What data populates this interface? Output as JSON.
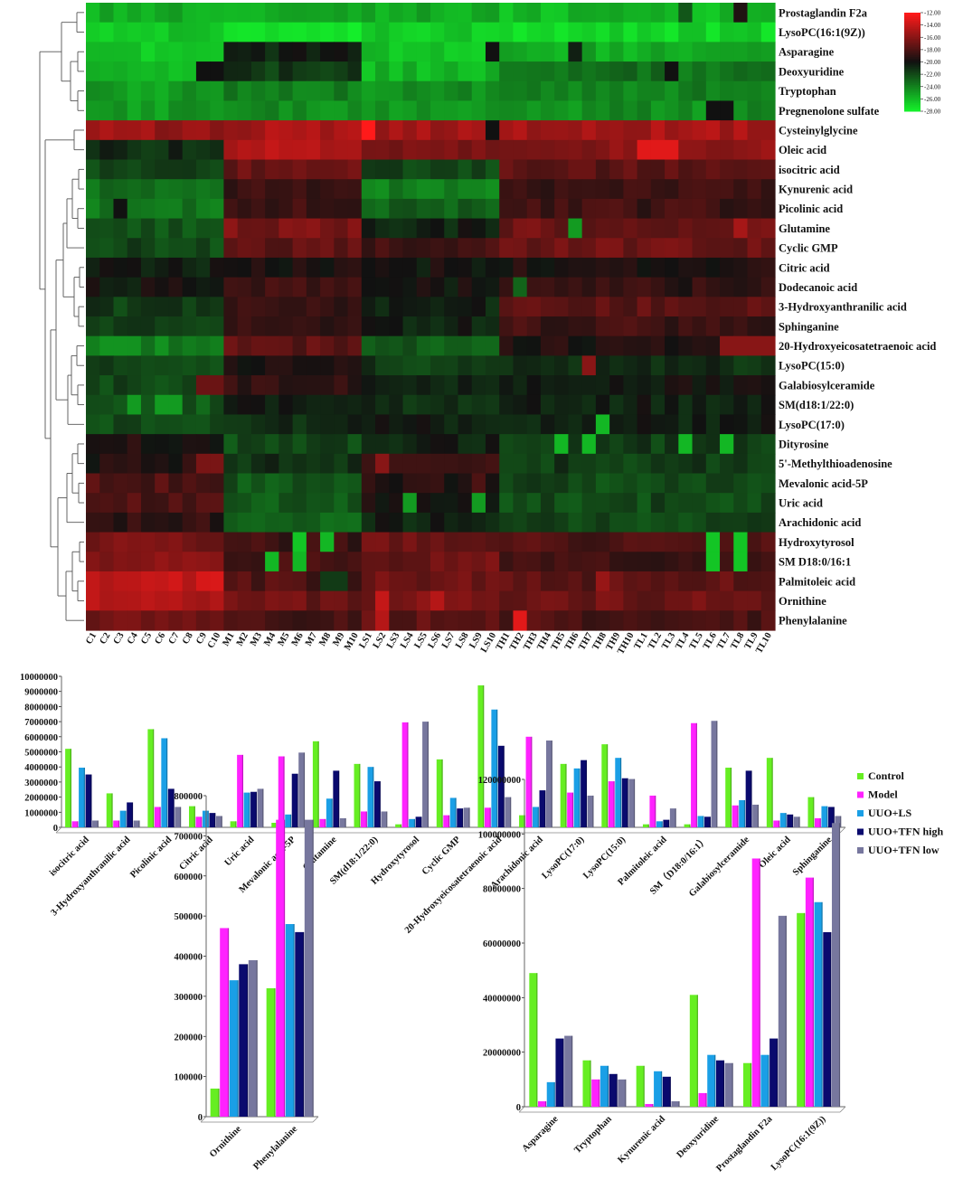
{
  "colors": {
    "hm_high": "#ff1a1a",
    "hm_mid": "#111111",
    "hm_low": "#14ee2a",
    "Control": "#66ee22",
    "Model": "#ff22ff",
    "UUO+LS": "#1a9fe6",
    "UUO+TFN high": "#0a0a6e",
    "UUO+TFN low": "#77779e"
  },
  "chart_data": [
    {
      "type": "heatmap",
      "title": "",
      "columns": [
        "C1",
        "C2",
        "C3",
        "C4",
        "C5",
        "C6",
        "C7",
        "C8",
        "C9",
        "C10",
        "M1",
        "M2",
        "M3",
        "M4",
        "M5",
        "M6",
        "M7",
        "M8",
        "M9",
        "M10",
        "LS1",
        "LS2",
        "LS3",
        "LS4",
        "LS5",
        "LS6",
        "LS7",
        "LS8",
        "LS9",
        "LS10",
        "TH1",
        "TH2",
        "TH3",
        "TH4",
        "TH5",
        "TH6",
        "TH7",
        "TH8",
        "TH9",
        "TH10",
        "TL1",
        "TL2",
        "TL3",
        "TL4",
        "TL5",
        "TL6",
        "TL7",
        "TL8",
        "TL9",
        "TL10"
      ],
      "rows": [
        {
          "name": "Prostaglandin F2a",
          "base": [
            -25.5,
            -25.5,
            -25.5,
            -26.0
          ],
          "spots": {
            "47": -19.5,
            "43": -22.5
          }
        },
        {
          "name": "LysoPC(16:1(9Z))",
          "base": [
            -26.5,
            -27.5,
            -26.5,
            -27.0
          ],
          "spots": {}
        },
        {
          "name": "Asparagine",
          "base": [
            -26.5,
            -20.5,
            -26.5,
            -25.5
          ],
          "spots": {
            "29": -20.0,
            "35": -20.5
          }
        },
        {
          "name": "Deoxyuridine",
          "base": [
            -26.0,
            -21.5,
            -26.0,
            -23.5
          ],
          "spots": {
            "8": -20.0,
            "9": -20.0,
            "42": -20.0
          }
        },
        {
          "name": "Tryptophan",
          "base": [
            -25.0,
            -24.0,
            -24.5,
            -24.0
          ],
          "spots": {}
        },
        {
          "name": "Pregnenolone sulfate",
          "base": [
            -25.0,
            -24.5,
            -25.0,
            -24.5
          ],
          "spots": {
            "45": -20.0,
            "46": -20.0
          }
        },
        {
          "name": "Cysteinylglycine",
          "base": [
            -15.5,
            -15.0,
            -15.0,
            -15.0
          ],
          "spots": {
            "20": -12.0,
            "29": -20.0
          }
        },
        {
          "name": "Oleic acid",
          "base": [
            -21.0,
            -14.5,
            -16.5,
            -16.0
          ],
          "spots": {
            "40": -13.0,
            "41": -13.0,
            "42": -13.0
          }
        },
        {
          "name": "isocitric acid",
          "base": [
            -22.0,
            -17.0,
            -22.0,
            -17.5
          ],
          "spots": {}
        },
        {
          "name": "Kynurenic acid",
          "base": [
            -23.5,
            -18.5,
            -24.0,
            -18.5
          ],
          "spots": {}
        },
        {
          "name": "Picolinic acid",
          "base": [
            -23.5,
            -18.5,
            -23.0,
            -18.5
          ],
          "spots": {
            "2": -20.0
          }
        },
        {
          "name": "Glutamine",
          "base": [
            -22.5,
            -16.5,
            -20.5,
            -17.0
          ],
          "spots": {
            "35": -25.0,
            "47": -15.0
          }
        },
        {
          "name": "Cyclic GMP",
          "base": [
            -22.0,
            -17.5,
            -18.5,
            -17.0
          ],
          "spots": {}
        },
        {
          "name": "Citric acid",
          "base": [
            -20.5,
            -19.5,
            -20.0,
            -19.5
          ],
          "spots": {}
        },
        {
          "name": "Dodecanoic acid",
          "base": [
            -20.0,
            -18.5,
            -20.0,
            -19.0
          ],
          "spots": {
            "31": -23.0
          }
        },
        {
          "name": "3-Hydroxyanthranilic acid",
          "base": [
            -21.5,
            -18.5,
            -20.5,
            -17.5
          ],
          "spots": {}
        },
        {
          "name": "Sphinganine",
          "base": [
            -21.5,
            -19.0,
            -20.5,
            -18.5
          ],
          "spots": {}
        },
        {
          "name": "20-Hydroxyeicosatetraenoic acid",
          "base": [
            -24.0,
            -17.5,
            -22.5,
            -19.5
          ],
          "spots": {
            "46": -16.0,
            "47": -16.0,
            "48": -16.0,
            "49": -16.0
          }
        },
        {
          "name": "LysoPC(15:0)",
          "base": [
            -22.0,
            -19.5,
            -21.5,
            -21.0
          ],
          "spots": {
            "36": -16.0
          }
        },
        {
          "name": "Galabiosylceramide",
          "base": [
            -22.0,
            -19.0,
            -20.5,
            -20.0
          ],
          "spots": {
            "8": -17.0,
            "9": -17.0
          }
        },
        {
          "name": "SM(d18:1/22:0)",
          "base": [
            -22.5,
            -20.5,
            -21.0,
            -20.5
          ],
          "spots": {
            "5": -25.0,
            "6": -25.0,
            "3": -25.0
          }
        },
        {
          "name": "LysoPC(17:0)",
          "base": [
            -22.0,
            -21.0,
            -20.5,
            -20.5
          ],
          "spots": {
            "37": -26.0
          }
        },
        {
          "name": "Dityrosine",
          "base": [
            -19.5,
            -22.0,
            -20.5,
            -21.5
          ],
          "spots": {
            "34": -26.0,
            "36": -26.0,
            "43": -26.0,
            "46": -26.0
          }
        },
        {
          "name": "5'-Methylthioadenosine",
          "base": [
            -19.5,
            -21.0,
            -19.0,
            -21.5
          ],
          "spots": {
            "21": -16.0,
            "8": -16.5,
            "9": -16.5
          }
        },
        {
          "name": "Mevalonic acid-5P",
          "base": [
            -18.0,
            -22.5,
            -19.5,
            -22.0
          ],
          "spots": {
            "28": -18.0
          }
        },
        {
          "name": "Uric acid",
          "base": [
            -18.0,
            -22.5,
            -20.0,
            -22.0
          ],
          "spots": {
            "23": -25.0,
            "28": -25.0
          }
        },
        {
          "name": "Arachidonic acid",
          "base": [
            -19.0,
            -23.0,
            -20.5,
            -22.0
          ],
          "spots": {}
        },
        {
          "name": "Hydroxytyrosol",
          "base": [
            -16.5,
            -18.5,
            -17.0,
            -18.0
          ],
          "spots": {
            "15": -26.5,
            "17": -26.0,
            "45": -26.5,
            "47": -26.5
          }
        },
        {
          "name": "SM  D18:0/16:1",
          "base": [
            -16.0,
            -18.5,
            -17.0,
            -18.5
          ],
          "spots": {
            "13": -26.0,
            "15": -26.0,
            "45": -26.5,
            "47": -26.5
          }
        },
        {
          "name": "Palmitoleic acid",
          "base": [
            -14.0,
            -18.0,
            -17.0,
            -17.5
          ],
          "spots": {
            "17": -21.5,
            "18": -21.5,
            "37": -15.5
          }
        },
        {
          "name": "Ornithine",
          "base": [
            -14.5,
            -17.0,
            -16.5,
            -17.0
          ],
          "spots": {
            "21": -14.0,
            "25": -14.5
          }
        },
        {
          "name": "Phenylalanine",
          "base": [
            -17.0,
            -18.5,
            -17.5,
            -18.0
          ],
          "spots": {
            "31": -13.0,
            "21": -14.5
          }
        }
      ],
      "legend": {
        "labels": [
          "-12.00",
          "-14.00",
          "-16.00",
          "-18.00",
          "-20.00",
          "-22.00",
          "-24.00",
          "-26.00",
          "-28.00"
        ],
        "range": [
          -28,
          -12
        ]
      }
    },
    {
      "type": "bar",
      "title": "",
      "categories": [
        "isocitric acid",
        "3-Hydroxyanthranilic acid",
        "Picolinic acid",
        "Citric acid",
        "Uric acid",
        "Mevalonic acid-5P",
        "Glutamine",
        "SM(d18:1/22:0)",
        "Hydroxytyrosol",
        "Cyclic GMP",
        "20-Hydroxyeicosatetraenoic acid",
        "Arachidonic acid",
        "LysoPC(17:0)",
        "LysoPC(15:0)",
        "Palmitoleic acid",
        "SM（D18:0/16:1）",
        "Galabiosylceramide",
        "Oleic acid",
        "Sphinganine"
      ],
      "series": [
        {
          "name": "Control",
          "values": [
            5200000,
            2250000,
            6500000,
            1400000,
            400000,
            300000,
            5700000,
            4200000,
            200000,
            4500000,
            9400000,
            800000,
            4200000,
            5500000,
            200000,
            200000,
            3950000,
            4600000,
            2000000
          ]
        },
        {
          "name": "Model",
          "values": [
            400000,
            450000,
            1350000,
            700000,
            4800000,
            4700000,
            550000,
            1050000,
            6950000,
            800000,
            1300000,
            6000000,
            2300000,
            3050000,
            2100000,
            6900000,
            1450000,
            450000,
            600000
          ]
        },
        {
          "name": "UUO+LS",
          "values": [
            3950000,
            1100000,
            5900000,
            1100000,
            2300000,
            850000,
            1900000,
            4000000,
            550000,
            1950000,
            7800000,
            1350000,
            3900000,
            4600000,
            400000,
            750000,
            1800000,
            950000,
            1400000
          ]
        },
        {
          "name": "UUO+TFN high",
          "values": [
            3500000,
            1650000,
            2550000,
            950000,
            2350000,
            3550000,
            3750000,
            3050000,
            700000,
            1250000,
            5400000,
            2450000,
            4450000,
            3250000,
            500000,
            700000,
            3750000,
            850000,
            1350000
          ]
        },
        {
          "name": "UUO+TFN low",
          "values": [
            450000,
            450000,
            1350000,
            750000,
            2550000,
            4950000,
            600000,
            1050000,
            7000000,
            1300000,
            2000000,
            5750000,
            2100000,
            3200000,
            1250000,
            7050000,
            1500000,
            700000,
            750000
          ]
        }
      ],
      "ylim": [
        0,
        10000000
      ],
      "yticks": [
        "0",
        "1000000",
        "2000000",
        "3000000",
        "4000000",
        "5000000",
        "6000000",
        "7000000",
        "8000000",
        "9000000",
        "10000000"
      ],
      "legend": "right"
    },
    {
      "type": "bar",
      "title": "",
      "categories": [
        "Ornithine",
        "Phenylalanine"
      ],
      "series": [
        {
          "name": "Control",
          "values": [
            70000,
            320000
          ]
        },
        {
          "name": "Model",
          "values": [
            470000,
            740000
          ]
        },
        {
          "name": "UUO+LS",
          "values": [
            340000,
            480000
          ]
        },
        {
          "name": "UUO+TFN high",
          "values": [
            380000,
            460000
          ]
        },
        {
          "name": "UUO+TFN low",
          "values": [
            390000,
            740000
          ]
        }
      ],
      "ylim": [
        0,
        800000
      ],
      "yticks": [
        "0",
        "100000",
        "200000",
        "300000",
        "400000",
        "500000",
        "600000",
        "700000",
        "800000"
      ]
    },
    {
      "type": "bar",
      "title": "",
      "categories": [
        "Asparagine",
        "Tryptophan",
        "Kynurenic acid",
        "Deoxyuridine",
        "Prostaglandin F2a",
        "LysoPC(16:1(9Z))"
      ],
      "series": [
        {
          "name": "Control",
          "values": [
            49000000,
            17000000,
            15000000,
            41000000,
            16000000,
            71000000
          ]
        },
        {
          "name": "Model",
          "values": [
            2000000,
            10000000,
            1000000,
            5000000,
            91000000,
            84000000
          ]
        },
        {
          "name": "UUO+LS",
          "values": [
            9000000,
            15000000,
            13000000,
            19000000,
            19000000,
            75000000
          ]
        },
        {
          "name": "UUO+TFN high",
          "values": [
            25000000,
            12000000,
            11000000,
            17000000,
            25000000,
            64000000
          ]
        },
        {
          "name": "UUO+TFN low",
          "values": [
            26000000,
            10000000,
            2000000,
            16000000,
            70000000,
            104000000
          ]
        }
      ],
      "ylim": [
        0,
        120000000
      ],
      "yticks": [
        "0",
        "20000000",
        "40000000",
        "60000000",
        "80000000",
        "100000000",
        "120000000"
      ]
    }
  ]
}
